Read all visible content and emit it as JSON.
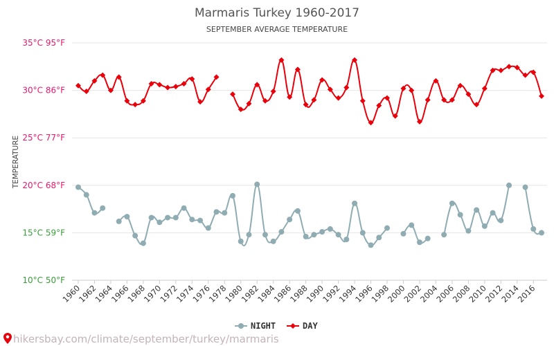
{
  "chart_data": {
    "type": "line",
    "title": "Marmaris Turkey 1960-2017",
    "subtitle": "SEPTEMBER AVERAGE TEMPERATURE",
    "ylabel": "TEMPERATURE",
    "ylim": [
      10,
      35
    ],
    "yticks": [
      {
        "value": 35,
        "label": "35°C 95°F",
        "color": "#e8196b"
      },
      {
        "value": 30,
        "label": "30°C 86°F",
        "color": "#e8196b"
      },
      {
        "value": 25,
        "label": "25°C 77°F",
        "color": "#e8196b"
      },
      {
        "value": 20,
        "label": "20°C 68°F",
        "color": "#e8196b"
      },
      {
        "value": 15,
        "label": "15°C 59°F",
        "color": "#3a9d3a"
      },
      {
        "value": 10,
        "label": "10°C 50°F",
        "color": "#3a9d3a"
      }
    ],
    "xlim": [
      1960,
      2017
    ],
    "xticks": [
      1960,
      1962,
      1964,
      1966,
      1968,
      1970,
      1972,
      1974,
      1976,
      1978,
      1980,
      1982,
      1984,
      1986,
      1988,
      1990,
      1992,
      1994,
      1996,
      1998,
      2000,
      2002,
      2004,
      2006,
      2008,
      2010,
      2012,
      2014,
      2016
    ],
    "grid": true,
    "legend_position": "bottom-center",
    "series": [
      {
        "name": "NIGHT",
        "color": "#90acb3",
        "marker": "circle",
        "x": [
          1960,
          1961,
          1962,
          1963,
          null,
          1965,
          1966,
          1967,
          1968,
          1969,
          1970,
          1971,
          1972,
          1973,
          1974,
          1975,
          1976,
          1977,
          1978,
          1979,
          1980,
          1981,
          1982,
          1983,
          1984,
          1985,
          1986,
          1987,
          1988,
          1989,
          1990,
          1991,
          1992,
          1993,
          1994,
          1995,
          1996,
          1997,
          1998,
          null,
          2000,
          2001,
          2002,
          2003,
          null,
          2005,
          2006,
          2007,
          2008,
          2009,
          2010,
          2011,
          2012,
          2013,
          null,
          2015,
          2016,
          2017
        ],
        "y": [
          19.8,
          19.0,
          17.1,
          17.6,
          null,
          16.2,
          16.7,
          14.7,
          13.9,
          16.6,
          16.1,
          16.6,
          16.6,
          17.6,
          16.4,
          16.3,
          15.5,
          17.2,
          17.1,
          18.9,
          14.1,
          14.8,
          20.1,
          14.8,
          14.1,
          15.1,
          16.4,
          17.3,
          14.6,
          14.8,
          15.1,
          15.4,
          14.8,
          14.3,
          18.1,
          15.0,
          13.7,
          14.5,
          15.5,
          null,
          14.9,
          15.8,
          14.0,
          14.4,
          null,
          14.8,
          18.1,
          16.9,
          15.2,
          17.4,
          15.7,
          17.1,
          16.3,
          20.0,
          null,
          19.8,
          15.4,
          15.0
        ]
      },
      {
        "name": "DAY",
        "color": "#e8000b",
        "marker": "diamond",
        "x": [
          1960,
          1961,
          1962,
          1963,
          1964,
          1965,
          1966,
          1967,
          1968,
          1969,
          1970,
          1971,
          1972,
          1973,
          1974,
          1975,
          1976,
          1977,
          null,
          1979,
          1980,
          1981,
          1982,
          1983,
          1984,
          1985,
          1986,
          1987,
          1988,
          1989,
          1990,
          1991,
          1992,
          1993,
          1994,
          1995,
          1996,
          1997,
          1998,
          1999,
          2000,
          2001,
          2002,
          2003,
          2004,
          2005,
          2006,
          2007,
          2008,
          2009,
          2010,
          2011,
          2012,
          2013,
          2014,
          2015,
          2016,
          2017
        ],
        "y": [
          30.5,
          29.9,
          31.0,
          31.6,
          30.0,
          31.4,
          28.9,
          28.5,
          28.9,
          30.7,
          30.6,
          30.3,
          30.4,
          30.7,
          31.2,
          28.8,
          30.1,
          31.4,
          null,
          29.6,
          28.0,
          28.6,
          30.6,
          28.9,
          29.9,
          33.2,
          29.3,
          32.2,
          28.5,
          29.0,
          31.1,
          30.1,
          29.2,
          30.3,
          33.2,
          28.9,
          26.6,
          28.4,
          29.2,
          27.3,
          30.2,
          30.0,
          26.7,
          29.0,
          31.0,
          29.0,
          29.0,
          30.5,
          29.6,
          28.5,
          30.2,
          32.1,
          32.1,
          32.5,
          32.4,
          31.6,
          31.9,
          29.4
        ]
      }
    ]
  },
  "source": {
    "url_text": "hikersbay.com/climate/september/turkey/marmaris",
    "pin_icon": "location-pin-icon",
    "pin_color": "#e8000b"
  }
}
